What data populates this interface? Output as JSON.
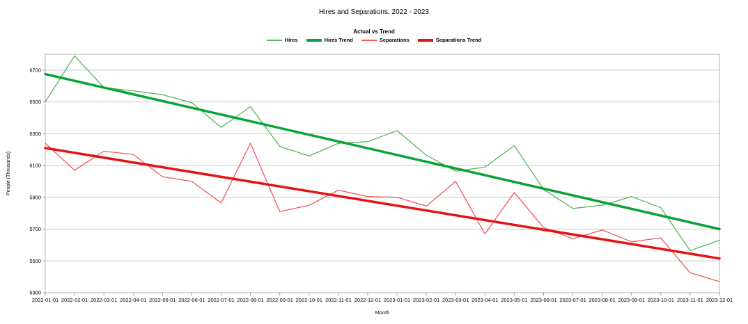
{
  "header": {
    "title": "Hires and Separations, 2022 - 2023",
    "subtitle": "Actual vs Trend"
  },
  "colors": {
    "hires": "#53b553",
    "hires_trend": "#0aa336",
    "separations": "#ef5858",
    "separations_trend": "#e51212",
    "gridline": "#c6c6c6",
    "axis_border": "#b0b0b0",
    "tick": "#999999",
    "text": "#000000"
  },
  "chart_data": {
    "type": "line",
    "title": "Hires and Separations, 2022 - 2023",
    "subtitle": "Actual vs Trend",
    "xlabel": "Month",
    "ylabel": "People (Thousands)",
    "ylim": [
      5300,
      6800
    ],
    "yticks": [
      5300,
      5500,
      5700,
      5900,
      6100,
      6300,
      6500,
      6700
    ],
    "grid": "horizontal-only",
    "legend_position": "top-center",
    "categories": [
      "2022-01-01",
      "2022-02-01",
      "2022-03-01",
      "2022-04-01",
      "2022-05-01",
      "2022-06-01",
      "2022-07-01",
      "2022-08-01",
      "2022-09-01",
      "2022-10-01",
      "2022-11-01",
      "2022-12-01",
      "2023-01-01",
      "2023-02-01",
      "2023-03-01",
      "2023-04-01",
      "2023-05-01",
      "2023-06-01",
      "2023-07-01",
      "2023-08-01",
      "2023-09-01",
      "2023-10-01",
      "2023-11-01",
      "2023-12-01"
    ],
    "series": [
      {
        "name": "Hires",
        "color": "#53b553",
        "width": 1.3,
        "style": "thin",
        "values": [
          6500,
          6790,
          6590,
          6570,
          6545,
          6495,
          6340,
          6470,
          6220,
          6160,
          6240,
          6250,
          6320,
          6165,
          6065,
          6090,
          6225,
          5950,
          5830,
          5850,
          5905,
          5835,
          5565,
          5630
        ]
      },
      {
        "name": "Hires Trend",
        "color": "#0aa336",
        "width": 3.5,
        "style": "thick",
        "x": [
          0,
          23
        ],
        "values": [
          6675,
          5700
        ]
      },
      {
        "name": "Separations",
        "color": "#ef5858",
        "width": 1.3,
        "style": "thin",
        "values": [
          6240,
          6070,
          6190,
          6170,
          6030,
          6000,
          5865,
          6240,
          5810,
          5850,
          5945,
          5905,
          5900,
          5845,
          6000,
          5670,
          5930,
          5710,
          5640,
          5695,
          5620,
          5645,
          5425,
          5370
        ]
      },
      {
        "name": "Separations Trend",
        "color": "#e51212",
        "width": 3.5,
        "style": "thick",
        "x": [
          0,
          23
        ],
        "values": [
          6210,
          5515
        ]
      }
    ]
  }
}
